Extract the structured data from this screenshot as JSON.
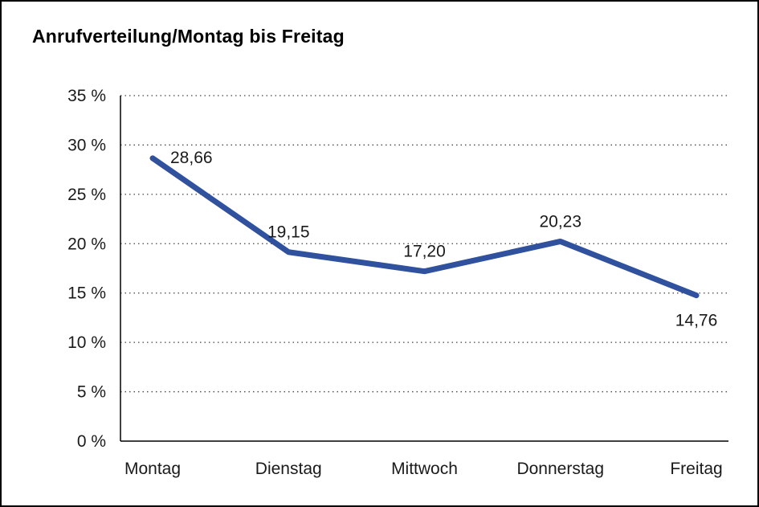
{
  "title": "Anrufverteilung/Montag bis Freitag",
  "chart_data": {
    "type": "line",
    "title": "Anrufverteilung/Montag bis Freitag",
    "categories": [
      "Montag",
      "Dienstag",
      "Mittwoch",
      "Donnerstag",
      "Freitag"
    ],
    "values": [
      28.66,
      19.15,
      17.2,
      20.23,
      14.76
    ],
    "data_labels": [
      "28,66",
      "19,15",
      "17,20",
      "20,23",
      "14,76"
    ],
    "label_positions": [
      "right",
      "above",
      "above",
      "above",
      "below"
    ],
    "xlabel": "",
    "ylabel": "",
    "ylim": [
      0,
      35
    ],
    "ytick_step": 5,
    "ytick_suffix": " %",
    "grid": "dotted-horizontal",
    "legend": "none",
    "line_color": "#2F519E",
    "grid_color": "#444444",
    "axis_color": "#000000"
  }
}
